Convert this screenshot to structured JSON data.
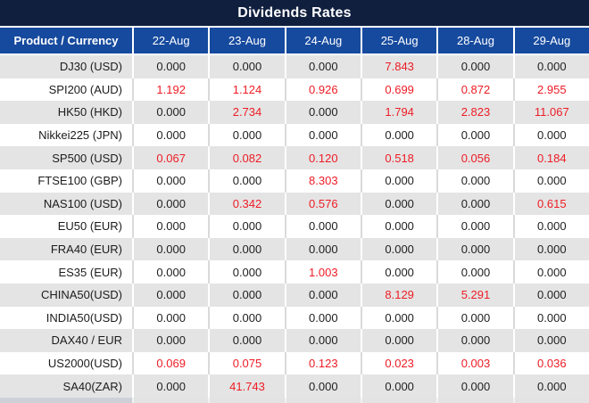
{
  "title": "Dividends Rates",
  "colors": {
    "title_bar_bg": "#101f3e",
    "header_bg": "#164a9e",
    "alt_row_bg": "#e4e4e4",
    "value_text": "#1f1f1f",
    "nonzero_value_text": "#ee1c25"
  },
  "table": {
    "product_header": "Product / Currency",
    "date_headers": [
      "22-Aug",
      "23-Aug",
      "24-Aug",
      "25-Aug",
      "28-Aug",
      "29-Aug"
    ],
    "rows": [
      {
        "product": "DJ30 (USD)",
        "values": [
          "0.000",
          "0.000",
          "0.000",
          "7.843",
          "0.000",
          "0.000"
        ]
      },
      {
        "product": "SPI200 (AUD)",
        "values": [
          "1.192",
          "1.124",
          "0.926",
          "0.699",
          "0.872",
          "2.955"
        ]
      },
      {
        "product": "HK50 (HKD)",
        "values": [
          "0.000",
          "2.734",
          "0.000",
          "1.794",
          "2.823",
          "11.067"
        ]
      },
      {
        "product": "Nikkei225 (JPN)",
        "values": [
          "0.000",
          "0.000",
          "0.000",
          "0.000",
          "0.000",
          "0.000"
        ]
      },
      {
        "product": "SP500 (USD)",
        "values": [
          "0.067",
          "0.082",
          "0.120",
          "0.518",
          "0.056",
          "0.184"
        ]
      },
      {
        "product": "FTSE100 (GBP)",
        "values": [
          "0.000",
          "0.000",
          "8.303",
          "0.000",
          "0.000",
          "0.000"
        ]
      },
      {
        "product": "NAS100 (USD)",
        "values": [
          "0.000",
          "0.342",
          "0.576",
          "0.000",
          "0.000",
          "0.615"
        ]
      },
      {
        "product": "EU50 (EUR)",
        "values": [
          "0.000",
          "0.000",
          "0.000",
          "0.000",
          "0.000",
          "0.000"
        ]
      },
      {
        "product": "FRA40 (EUR)",
        "values": [
          "0.000",
          "0.000",
          "0.000",
          "0.000",
          "0.000",
          "0.000"
        ]
      },
      {
        "product": "ES35 (EUR)",
        "values": [
          "0.000",
          "0.000",
          "1.003",
          "0.000",
          "0.000",
          "0.000"
        ]
      },
      {
        "product": "CHINA50(USD)",
        "values": [
          "0.000",
          "0.000",
          "0.000",
          "8.129",
          "5.291",
          "0.000"
        ]
      },
      {
        "product": "INDIA50(USD)",
        "values": [
          "0.000",
          "0.000",
          "0.000",
          "0.000",
          "0.000",
          "0.000"
        ]
      },
      {
        "product": "DAX40 / EUR",
        "values": [
          "0.000",
          "0.000",
          "0.000",
          "0.000",
          "0.000",
          "0.000"
        ]
      },
      {
        "product": "US2000(USD)",
        "values": [
          "0.069",
          "0.075",
          "0.123",
          "0.023",
          "0.003",
          "0.036"
        ]
      },
      {
        "product": "SA40(ZAR)",
        "values": [
          "0.000",
          "41.743",
          "0.000",
          "0.000",
          "0.000",
          "0.000"
        ]
      }
    ]
  }
}
